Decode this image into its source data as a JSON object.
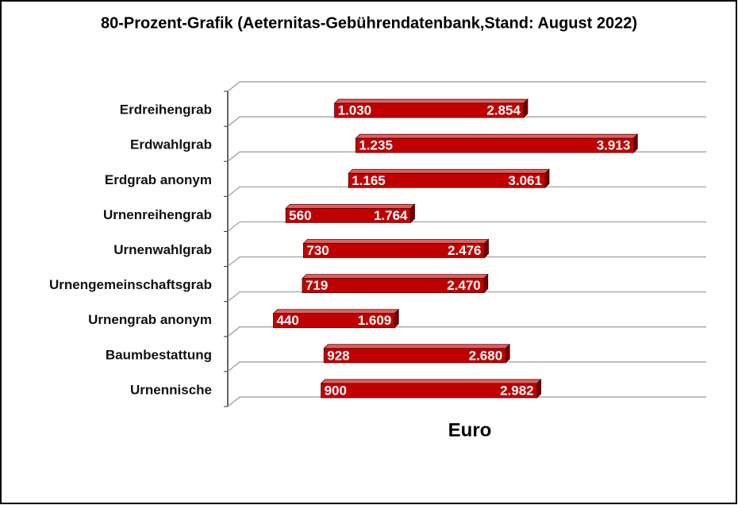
{
  "chart_data": {
    "type": "range-bar",
    "title": "80-Prozent-Grafik  (Aeternitas-Gebührendatenbank,Stand:  August  2022)",
    "x_label": "Euro",
    "categories": [
      "Erdreihengrab",
      "Erdwahlgrab",
      "Erdgrab anonym",
      "Urnenreihengrab",
      "Urnenwahlgrab",
      "Urnengemeinschaftsgrab",
      "Urnengrab anonym",
      "Baumbestattung",
      "Urnennische"
    ],
    "low": [
      1030,
      1235,
      1165,
      560,
      730,
      719,
      440,
      928,
      900
    ],
    "low_labels": [
      "1.030",
      "1.235",
      "1.165",
      "560",
      "730",
      "719",
      "440",
      "928",
      "900"
    ],
    "high": [
      2854,
      3913,
      3061,
      1764,
      2476,
      2470,
      1609,
      2680,
      2982
    ],
    "high_labels": [
      "2.854",
      "3.913",
      "3.061",
      "1.764",
      "2.476",
      "2.470",
      "1.609",
      "2.680",
      "2.982"
    ],
    "color": "#c00000",
    "xlim": [
      0,
      4500
    ],
    "grid": true
  }
}
